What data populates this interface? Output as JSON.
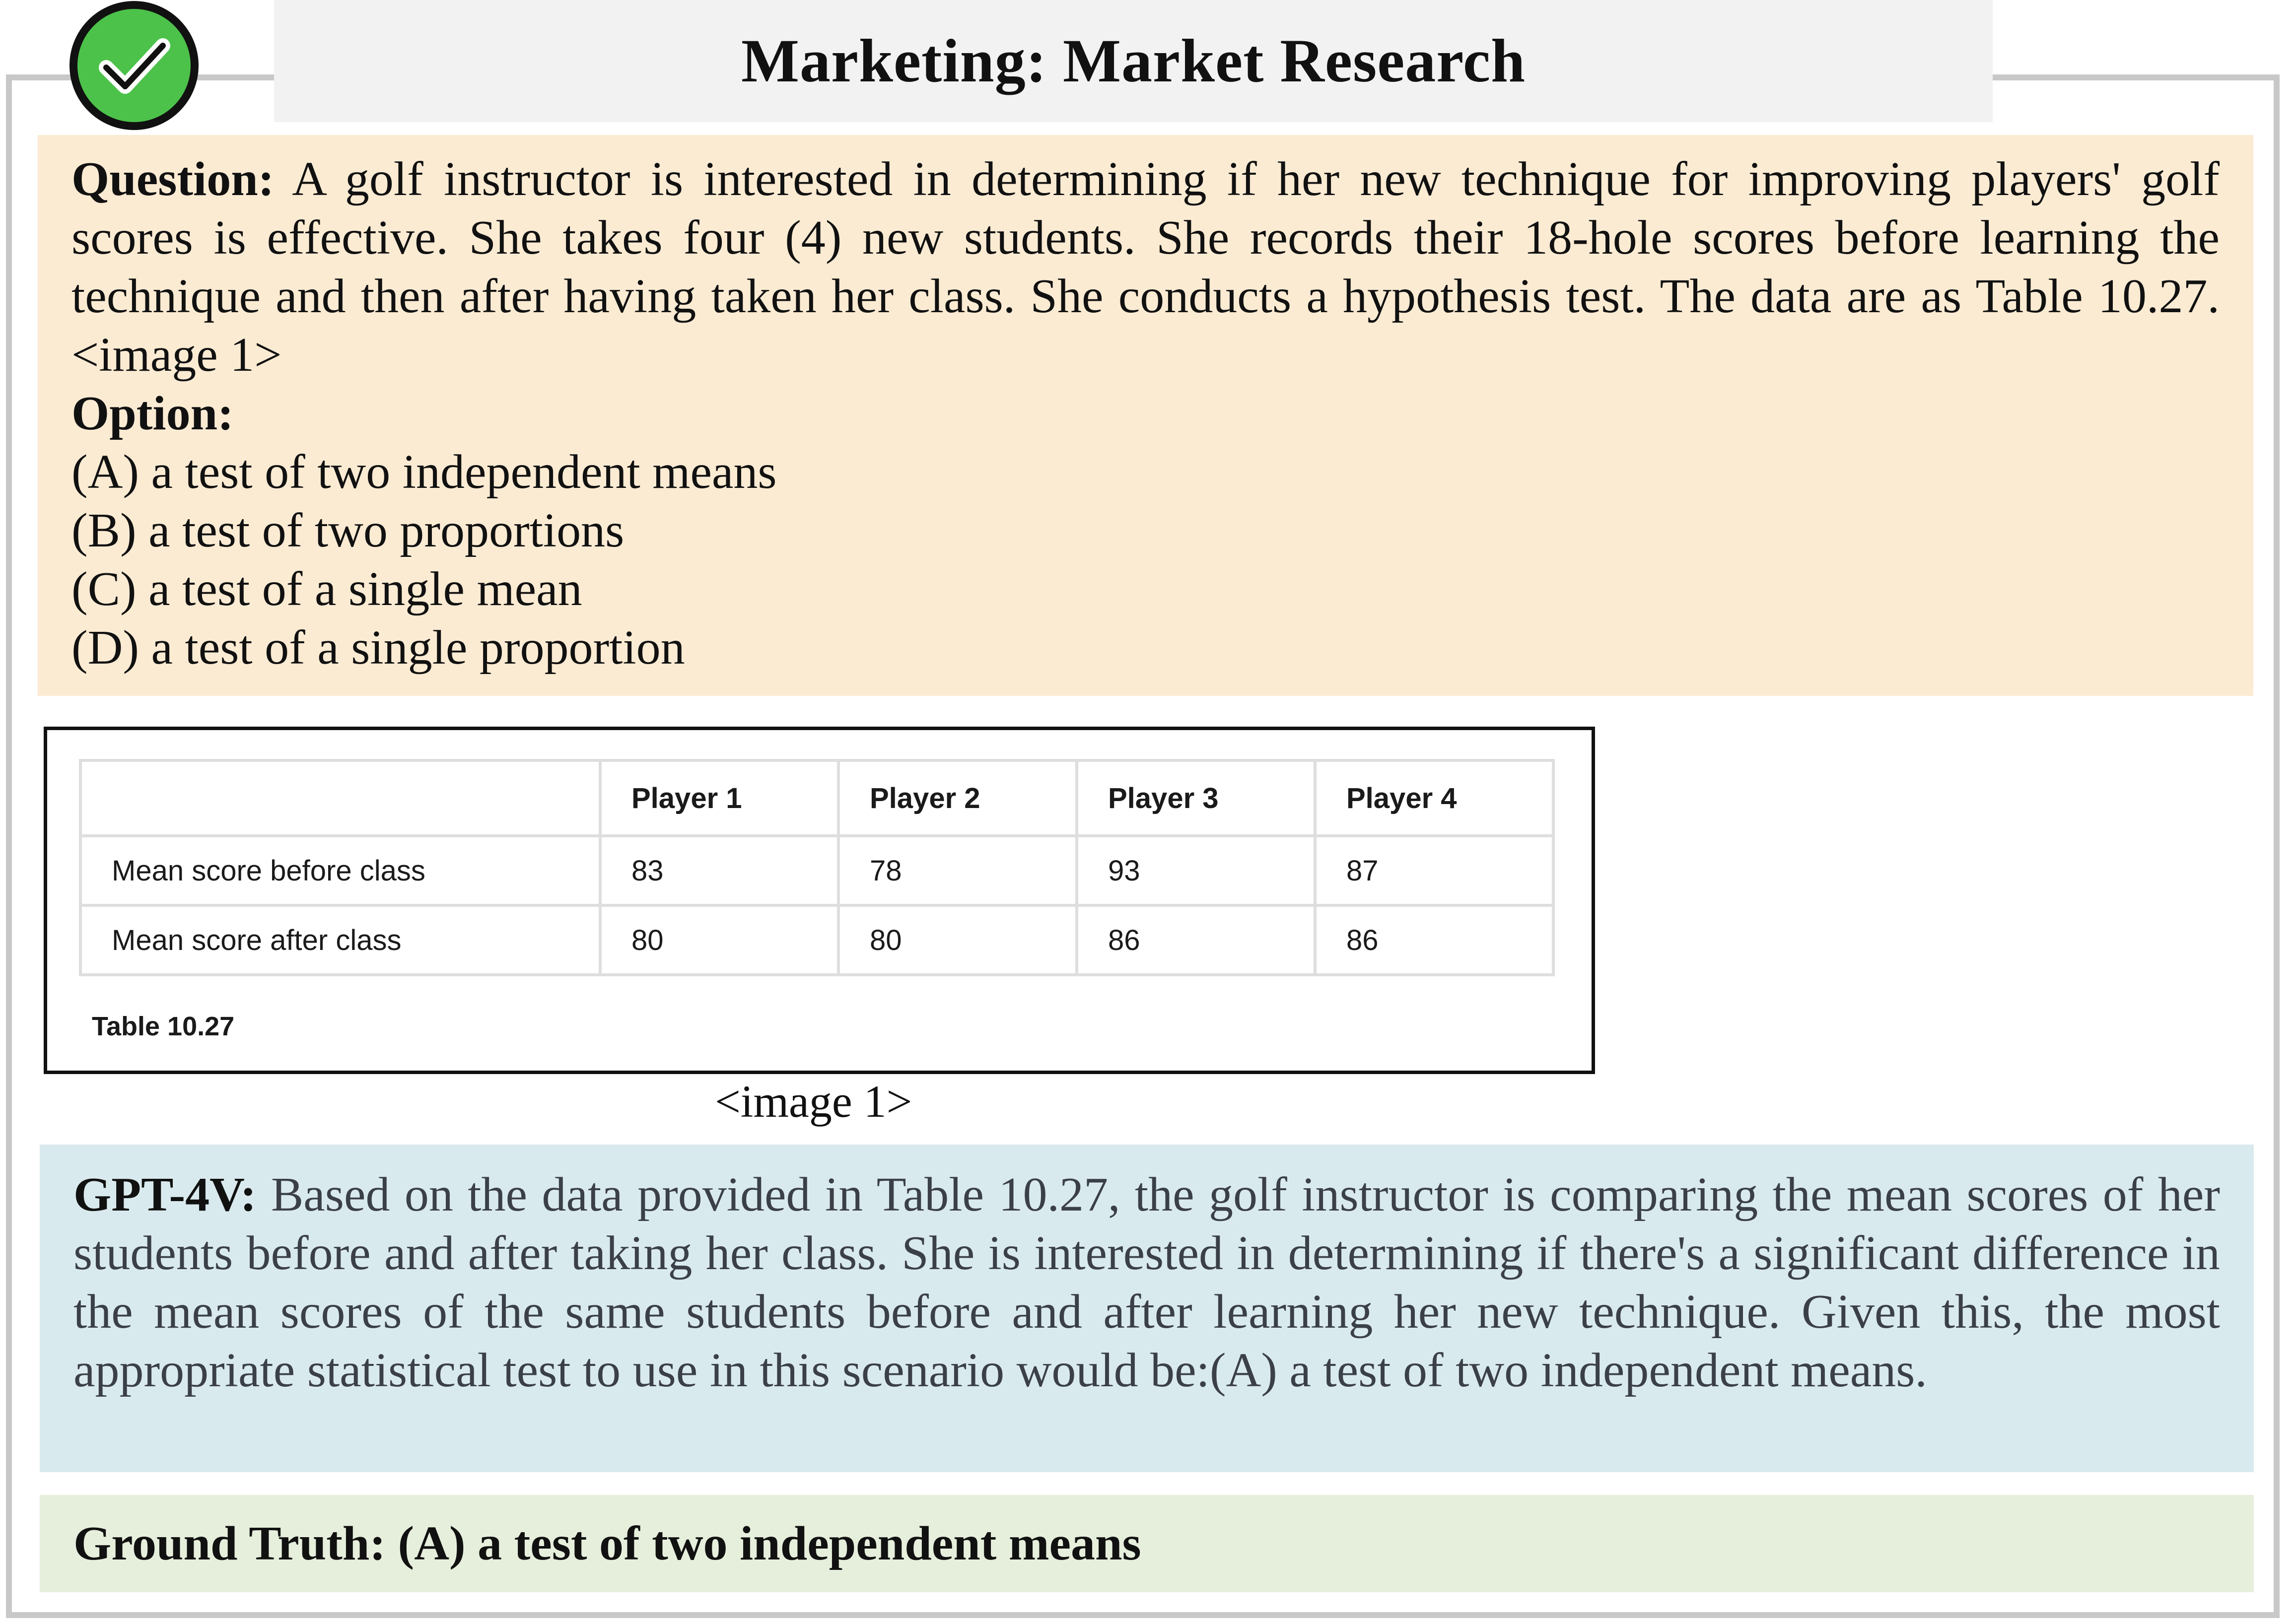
{
  "header": {
    "title": "Marketing: Market Research",
    "badge_icon": "check-circle-icon",
    "badge_color": "#4cc24a"
  },
  "question": {
    "label": "Question:",
    "text": " A golf instructor is interested in determining if her new technique for improving players' golf scores is effective. She takes four (4) new students. She records their 18-hole scores before learning the technique and then after having taken her class. She conducts a hypothesis test. The data are as Table 10.27. <image 1>",
    "option_label": "Option:",
    "options": [
      "(A) a test of two independent means",
      "(B) a test of two proportions",
      "(C) a test of a single mean",
      "(D) a test of a single proportion"
    ]
  },
  "table": {
    "headers": [
      "",
      "Player 1",
      "Player 2",
      "Player 3",
      "Player 4"
    ],
    "rows": [
      [
        "Mean score before class",
        "83",
        "78",
        "93",
        "87"
      ],
      [
        "Mean score after class",
        "80",
        "80",
        "86",
        "86"
      ]
    ],
    "caption": "Table  10.27"
  },
  "image_caption": "<image 1>",
  "gpt4v": {
    "label": "GPT-4V:",
    "text": " Based on the data provided in Table 10.27, the golf instructor is comparing the mean scores of her students before and after taking her class. She is interested in determining if there's a significant difference in the mean scores of the same students before and after learning her new technique. Given this, the most appropriate statistical test to use in this scenario would be:(A) a test of two independent means."
  },
  "ground_truth": {
    "text": "Ground Truth: (A) a test of two independent means"
  },
  "colors": {
    "question_bg": "#fbebd3",
    "gpt_bg": "#d9eaee",
    "truth_bg": "#e6efdc",
    "title_bg": "#f2f2f2"
  }
}
